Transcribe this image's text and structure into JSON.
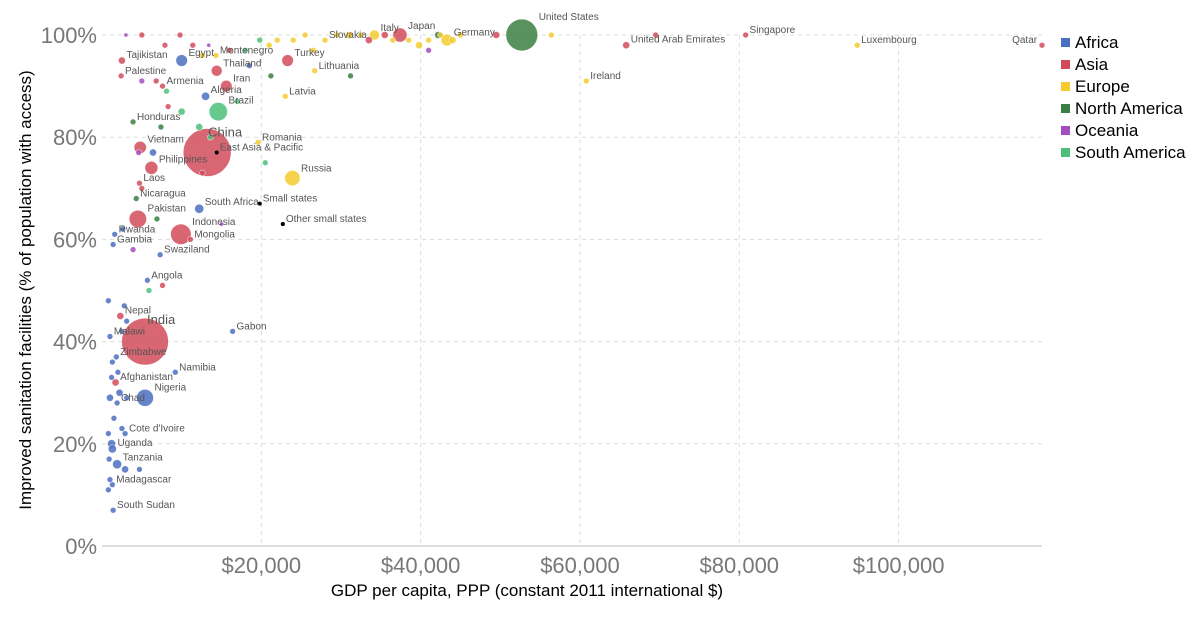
{
  "chart_data": {
    "type": "scatter",
    "xlabel": "GDP per capita, PPP (constant 2011 international $)",
    "ylabel": "Improved sanitation facilities (% of population with access)",
    "xlim": [
      0,
      118000
    ],
    "ylim": [
      0,
      100
    ],
    "x_ticks": [
      {
        "value": 20000,
        "label": "$20,000"
      },
      {
        "value": 40000,
        "label": "$40,000"
      },
      {
        "value": 60000,
        "label": "$60,000"
      },
      {
        "value": 80000,
        "label": "$80,000"
      },
      {
        "value": 100000,
        "label": "$100,000"
      }
    ],
    "y_ticks": [
      {
        "value": 0,
        "label": "0%"
      },
      {
        "value": 20,
        "label": "20%"
      },
      {
        "value": 40,
        "label": "40%"
      },
      {
        "value": 60,
        "label": "60%"
      },
      {
        "value": 80,
        "label": "80%"
      },
      {
        "value": 100,
        "label": "100%"
      }
    ],
    "grid": true,
    "legend_position": "right",
    "legend": [
      {
        "name": "Africa",
        "color": "#4a6fc1"
      },
      {
        "name": "Asia",
        "color": "#d24b5a"
      },
      {
        "name": "Europe",
        "color": "#f5cb2d"
      },
      {
        "name": "North America",
        "color": "#3a7f43"
      },
      {
        "name": "Oceania",
        "color": "#a24ec1"
      },
      {
        "name": "South America",
        "color": "#4cc07a"
      }
    ],
    "labeled_points": [
      {
        "label": "Qatar",
        "x": 118000,
        "y": 98,
        "region": "Asia",
        "size": 2
      },
      {
        "label": "Luxembourg",
        "x": 94800,
        "y": 98,
        "region": "Europe",
        "size": 2
      },
      {
        "label": "Singapore",
        "x": 80800,
        "y": 100,
        "region": "Asia",
        "size": 2
      },
      {
        "label": "United Arab Emirates",
        "x": 65800,
        "y": 98,
        "region": "Asia",
        "size": 3
      },
      {
        "label": "Ireland",
        "x": 60800,
        "y": 91,
        "region": "Europe",
        "size": 2
      },
      {
        "label": "United States",
        "x": 52700,
        "y": 100,
        "region": "North America",
        "size": 60
      },
      {
        "label": "Germany",
        "x": 43300,
        "y": 99,
        "region": "Europe",
        "size": 8
      },
      {
        "label": "Japan",
        "x": 37400,
        "y": 100,
        "region": "Asia",
        "size": 12
      },
      {
        "label": "Italy",
        "x": 34200,
        "y": 100,
        "region": "Europe",
        "size": 6
      },
      {
        "label": "Slovakia",
        "x": 28000,
        "y": 99,
        "region": "Europe",
        "size": 2
      },
      {
        "label": "Lithuania",
        "x": 26700,
        "y": 93,
        "region": "Europe",
        "size": 2
      },
      {
        "label": "Turkey",
        "x": 23300,
        "y": 95,
        "region": "Asia",
        "size": 8
      },
      {
        "label": "Latvia",
        "x": 23000,
        "y": 88,
        "region": "Europe",
        "size": 2
      },
      {
        "label": "Montenegro",
        "x": 14300,
        "y": 96,
        "region": "Europe",
        "size": 2
      },
      {
        "label": "Egypt",
        "x": 10000,
        "y": 95,
        "region": "Africa",
        "size": 8
      },
      {
        "label": "Tajikistan",
        "x": 2500,
        "y": 95,
        "region": "Asia",
        "size": 3
      },
      {
        "label": "Palestine",
        "x": 2400,
        "y": 92,
        "region": "Asia",
        "size": 2
      },
      {
        "label": "Thailand",
        "x": 14400,
        "y": 93,
        "region": "Asia",
        "size": 7
      },
      {
        "label": "Armenia",
        "x": 7600,
        "y": 90,
        "region": "Asia",
        "size": 2
      },
      {
        "label": "Iran",
        "x": 15600,
        "y": 90,
        "region": "Asia",
        "size": 8
      },
      {
        "label": "Algeria",
        "x": 13000,
        "y": 88,
        "region": "Africa",
        "size": 4
      },
      {
        "label": "Brazil",
        "x": 14600,
        "y": 85,
        "region": "South America",
        "size": 20
      },
      {
        "label": "Honduras",
        "x": 3900,
        "y": 83,
        "region": "North America",
        "size": 2
      },
      {
        "label": "Romania",
        "x": 19600,
        "y": 79,
        "region": "Europe",
        "size": 2
      },
      {
        "label": "Vietnam",
        "x": 4800,
        "y": 78,
        "region": "Asia",
        "size": 9
      },
      {
        "label": "China",
        "x": 13200,
        "y": 77,
        "region": "Asia",
        "size": 136
      },
      {
        "label": "East Asia & Pacific",
        "x": 14400,
        "y": 77,
        "region": "",
        "size": 1
      },
      {
        "label": "Philippines",
        "x": 6200,
        "y": 74,
        "region": "Asia",
        "size": 10
      },
      {
        "label": "Russia",
        "x": 23900,
        "y": 72,
        "region": "Europe",
        "size": 14
      },
      {
        "label": "Laos",
        "x": 4700,
        "y": 71,
        "region": "Asia",
        "size": 2
      },
      {
        "label": "Nicaragua",
        "x": 4300,
        "y": 68,
        "region": "North America",
        "size": 2
      },
      {
        "label": "South Africa",
        "x": 12200,
        "y": 66,
        "region": "Africa",
        "size": 5
      },
      {
        "label": "Small states",
        "x": 19800,
        "y": 67,
        "region": "",
        "size": 1
      },
      {
        "label": "Pakistan",
        "x": 4500,
        "y": 64,
        "region": "Asia",
        "size": 18
      },
      {
        "label": "Other small states",
        "x": 22700,
        "y": 63,
        "region": "",
        "size": 1
      },
      {
        "label": "Indonesia",
        "x": 9900,
        "y": 61,
        "region": "Asia",
        "size": 25
      },
      {
        "label": "Rwanda",
        "x": 1600,
        "y": 61,
        "region": "Africa",
        "size": 2
      },
      {
        "label": "Mongolia",
        "x": 11100,
        "y": 60,
        "region": "Asia",
        "size": 2
      },
      {
        "label": "Gambia",
        "x": 1400,
        "y": 59,
        "region": "Africa",
        "size": 2
      },
      {
        "label": "Swaziland",
        "x": 7300,
        "y": 57,
        "region": "Africa",
        "size": 2
      },
      {
        "label": "Angola",
        "x": 5700,
        "y": 52,
        "region": "Africa",
        "size": 2
      },
      {
        "label": "Nepal",
        "x": 2300,
        "y": 45,
        "region": "Asia",
        "size": 3
      },
      {
        "label": "Gabon",
        "x": 16400,
        "y": 42,
        "region": "Africa",
        "size": 2
      },
      {
        "label": "Malawi",
        "x": 1000,
        "y": 41,
        "region": "Africa",
        "size": 2
      },
      {
        "label": "India",
        "x": 5400,
        "y": 40,
        "region": "Asia",
        "size": 130
      },
      {
        "label": "Zimbabwe",
        "x": 1800,
        "y": 37,
        "region": "Africa",
        "size": 2
      },
      {
        "label": "Namibia",
        "x": 9200,
        "y": 34,
        "region": "Africa",
        "size": 2
      },
      {
        "label": "Afghanistan",
        "x": 1700,
        "y": 32,
        "region": "Asia",
        "size": 3
      },
      {
        "label": "Nigeria",
        "x": 5400,
        "y": 29,
        "region": "Africa",
        "size": 17
      },
      {
        "label": "Chad",
        "x": 1900,
        "y": 28,
        "region": "Africa",
        "size": 2
      },
      {
        "label": "Cote d'Ivoire",
        "x": 2900,
        "y": 22,
        "region": "Africa",
        "size": 2
      },
      {
        "label": "Uganda",
        "x": 1300,
        "y": 19,
        "region": "Africa",
        "size": 4
      },
      {
        "label": "Tanzania",
        "x": 1900,
        "y": 16,
        "region": "Africa",
        "size": 5
      },
      {
        "label": "Madagascar",
        "x": 1300,
        "y": 12,
        "region": "Africa",
        "size": 2
      },
      {
        "label": "South Sudan",
        "x": 1400,
        "y": 7,
        "region": "Africa",
        "size": 2
      }
    ],
    "unlabeled_points": [
      {
        "x": 5000,
        "y": 100,
        "region": "Asia",
        "size": 2
      },
      {
        "x": 7900,
        "y": 98,
        "region": "Asia",
        "size": 2
      },
      {
        "x": 11400,
        "y": 98,
        "region": "Asia",
        "size": 2
      },
      {
        "x": 13400,
        "y": 98,
        "region": "Oceania",
        "size": 1
      },
      {
        "x": 16000,
        "y": 97,
        "region": "Asia",
        "size": 2
      },
      {
        "x": 19800,
        "y": 99,
        "region": "South America",
        "size": 2
      },
      {
        "x": 21000,
        "y": 98,
        "region": "Europe",
        "size": 2
      },
      {
        "x": 22000,
        "y": 99,
        "region": "Europe",
        "size": 2
      },
      {
        "x": 24000,
        "y": 99,
        "region": "Europe",
        "size": 2
      },
      {
        "x": 25500,
        "y": 100,
        "region": "Europe",
        "size": 2
      },
      {
        "x": 26500,
        "y": 97,
        "region": "Europe",
        "size": 2
      },
      {
        "x": 29500,
        "y": 100,
        "region": "Europe",
        "size": 2
      },
      {
        "x": 31000,
        "y": 100,
        "region": "Europe",
        "size": 3
      },
      {
        "x": 32500,
        "y": 100,
        "region": "Europe",
        "size": 2
      },
      {
        "x": 33500,
        "y": 99,
        "region": "Asia",
        "size": 3
      },
      {
        "x": 35500,
        "y": 100,
        "region": "Asia",
        "size": 3
      },
      {
        "x": 36500,
        "y": 99,
        "region": "Europe",
        "size": 2
      },
      {
        "x": 38500,
        "y": 99,
        "region": "Europe",
        "size": 2
      },
      {
        "x": 39800,
        "y": 98,
        "region": "Europe",
        "size": 3
      },
      {
        "x": 41000,
        "y": 99,
        "region": "Europe",
        "size": 2
      },
      {
        "x": 42500,
        "y": 100,
        "region": "Europe",
        "size": 2
      },
      {
        "x": 44000,
        "y": 99,
        "region": "Europe",
        "size": 3
      },
      {
        "x": 45000,
        "y": 100,
        "region": "Europe",
        "size": 2
      },
      {
        "x": 49500,
        "y": 100,
        "region": "Asia",
        "size": 3
      },
      {
        "x": 56400,
        "y": 100,
        "region": "Europe",
        "size": 2
      },
      {
        "x": 42200,
        "y": 100,
        "region": "North America",
        "size": 3
      },
      {
        "x": 41000,
        "y": 97,
        "region": "Oceania",
        "size": 2
      },
      {
        "x": 69500,
        "y": 100,
        "region": "Asia",
        "size": 2
      },
      {
        "x": 3000,
        "y": 100,
        "region": "Oceania",
        "size": 1
      },
      {
        "x": 9800,
        "y": 100,
        "region": "Asia",
        "size": 2
      },
      {
        "x": 12600,
        "y": 96,
        "region": "Europe",
        "size": 2
      },
      {
        "x": 18000,
        "y": 97,
        "region": "South America",
        "size": 2
      },
      {
        "x": 18500,
        "y": 94,
        "region": "Africa",
        "size": 2
      },
      {
        "x": 21200,
        "y": 92,
        "region": "North America",
        "size": 2
      },
      {
        "x": 31200,
        "y": 92,
        "region": "North America",
        "size": 2
      },
      {
        "x": 6800,
        "y": 91,
        "region": "Asia",
        "size": 2
      },
      {
        "x": 5000,
        "y": 91,
        "region": "Oceania",
        "size": 2
      },
      {
        "x": 8100,
        "y": 89,
        "region": "South America",
        "size": 2
      },
      {
        "x": 17000,
        "y": 87,
        "region": "South America",
        "size": 2
      },
      {
        "x": 8300,
        "y": 86,
        "region": "Asia",
        "size": 2
      },
      {
        "x": 10000,
        "y": 85,
        "region": "South America",
        "size": 3
      },
      {
        "x": 12200,
        "y": 82,
        "region": "South America",
        "size": 3
      },
      {
        "x": 7400,
        "y": 82,
        "region": "North America",
        "size": 2
      },
      {
        "x": 13600,
        "y": 80,
        "region": "South America",
        "size": 2
      },
      {
        "x": 4600,
        "y": 77,
        "region": "Oceania",
        "size": 2
      },
      {
        "x": 6400,
        "y": 77,
        "region": "Africa",
        "size": 3
      },
      {
        "x": 20500,
        "y": 75,
        "region": "South America",
        "size": 2
      },
      {
        "x": 12600,
        "y": 73,
        "region": "Asia",
        "size": 2
      },
      {
        "x": 5000,
        "y": 70,
        "region": "Asia",
        "size": 2
      },
      {
        "x": 6900,
        "y": 64,
        "region": "North America",
        "size": 2
      },
      {
        "x": 15000,
        "y": 63,
        "region": "Oceania",
        "size": 1
      },
      {
        "x": 2600,
        "y": 62,
        "region": "Africa",
        "size": 2
      },
      {
        "x": 3900,
        "y": 58,
        "region": "Oceania",
        "size": 2
      },
      {
        "x": 7600,
        "y": 51,
        "region": "Asia",
        "size": 2
      },
      {
        "x": 5900,
        "y": 50,
        "region": "South America",
        "size": 2
      },
      {
        "x": 800,
        "y": 48,
        "region": "Africa",
        "size": 2
      },
      {
        "x": 2800,
        "y": 47,
        "region": "Africa",
        "size": 2
      },
      {
        "x": 3100,
        "y": 44,
        "region": "Africa",
        "size": 2
      },
      {
        "x": 2500,
        "y": 42,
        "region": "Africa",
        "size": 2
      },
      {
        "x": 1300,
        "y": 36,
        "region": "Africa",
        "size": 2
      },
      {
        "x": 2000,
        "y": 34,
        "region": "Africa",
        "size": 2
      },
      {
        "x": 1200,
        "y": 33,
        "region": "Africa",
        "size": 2
      },
      {
        "x": 2200,
        "y": 30,
        "region": "Africa",
        "size": 3
      },
      {
        "x": 1000,
        "y": 29,
        "region": "Africa",
        "size": 3
      },
      {
        "x": 3100,
        "y": 29,
        "region": "Africa",
        "size": 2
      },
      {
        "x": 1500,
        "y": 25,
        "region": "Africa",
        "size": 2
      },
      {
        "x": 2500,
        "y": 23,
        "region": "Africa",
        "size": 2
      },
      {
        "x": 800,
        "y": 22,
        "region": "Africa",
        "size": 2
      },
      {
        "x": 1200,
        "y": 20,
        "region": "Africa",
        "size": 4
      },
      {
        "x": 900,
        "y": 17,
        "region": "Africa",
        "size": 2
      },
      {
        "x": 2900,
        "y": 15,
        "region": "Africa",
        "size": 3
      },
      {
        "x": 4700,
        "y": 15,
        "region": "Africa",
        "size": 2
      },
      {
        "x": 800,
        "y": 11,
        "region": "Africa",
        "size": 2
      },
      {
        "x": 1000,
        "y": 13,
        "region": "Africa",
        "size": 2
      }
    ]
  }
}
